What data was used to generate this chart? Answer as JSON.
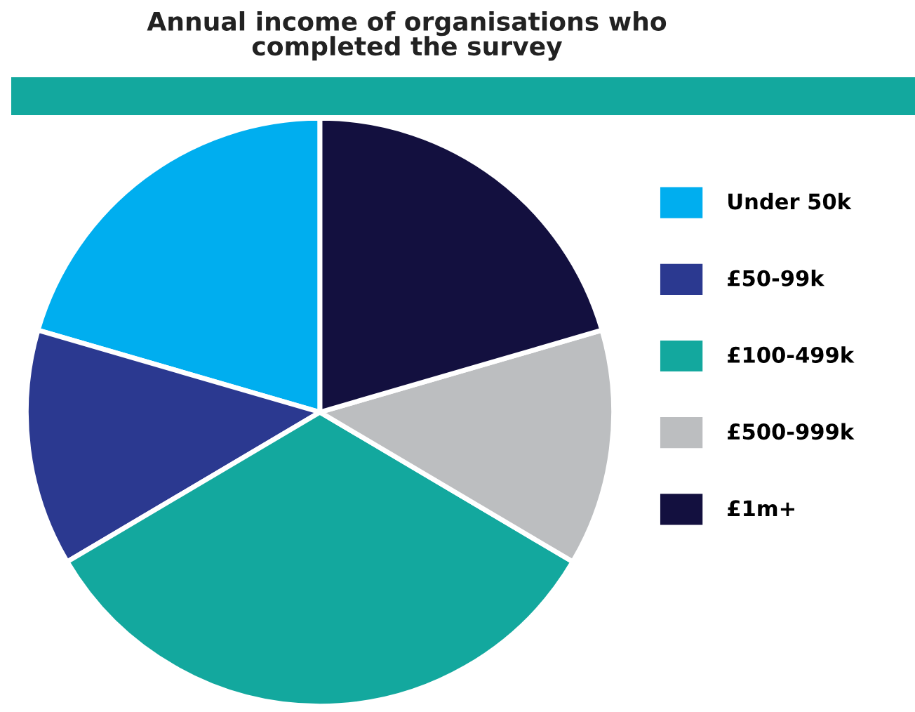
{
  "chart_data": {
    "type": "pie",
    "title": "Annual income of organisations who\ncompleted the survey",
    "categories": [
      "Under 50k",
      "£50-99k",
      "£100-499k",
      "£500-999k",
      "£1m+"
    ],
    "values": [
      20.5,
      13,
      33,
      13,
      20.5
    ],
    "colors": [
      "#00aeef",
      "#2b3990",
      "#13a89e",
      "#bcbec0",
      "#13103f"
    ],
    "legend": "right"
  }
}
